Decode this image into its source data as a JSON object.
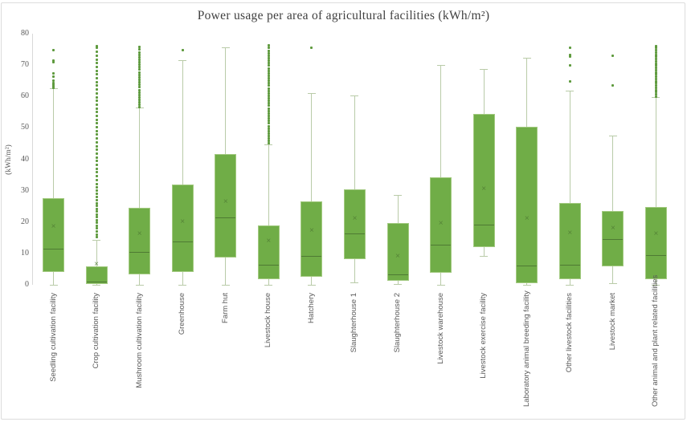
{
  "chart_data": {
    "type": "box",
    "title": "Power usage per area of agricultural facilities (kWh/m²)",
    "ylabel": "(kWh/m²)",
    "xlabel": "",
    "ylim": [
      0,
      80
    ],
    "yticks": [
      0,
      10,
      20,
      30,
      40,
      50,
      60,
      70,
      80
    ],
    "grid": false,
    "legend_position": "none",
    "boxes": [
      {
        "label": "Seedling cultivation facility",
        "low": 0,
        "q1": 4.2,
        "median": 11.5,
        "q3": 27.5,
        "high": 62.5,
        "mean": 18.3,
        "outliers": [
          62.8,
          63.2,
          63.7,
          64.2,
          65,
          66.3,
          67.4,
          71,
          71.5,
          74.8
        ]
      },
      {
        "label": "Crop cultivation facility",
        "low": 0,
        "q1": 0.2,
        "median": 0.9,
        "q3": 5.8,
        "high": 14.2,
        "mean": 6.5,
        "outliers": [
          15.2,
          16.1,
          17,
          17.9,
          18.8,
          19.7,
          20.6,
          21.5,
          22.4,
          23.3,
          24.2,
          25.1,
          26,
          27,
          28,
          29,
          30,
          31,
          32.2,
          33.4,
          34.6,
          35.8,
          37,
          38.2,
          39.4,
          40.6,
          41.8,
          43,
          44.2,
          45.4,
          46.6,
          47.8,
          49,
          50.2,
          51.4,
          52.6,
          53.8,
          55,
          56.2,
          57.4,
          58.6,
          59.8,
          61,
          62.2,
          63.4,
          64.6,
          65.8,
          67,
          68.2,
          69.4,
          70.6,
          71.8,
          73,
          74.2,
          75.4,
          76
        ]
      },
      {
        "label": "Mushroom cultivation facility",
        "low": 0,
        "q1": 3.2,
        "median": 10.3,
        "q3": 24.5,
        "high": 56.3,
        "mean": 16.2,
        "outliers": [
          56.5,
          57.3,
          58.1,
          58.9,
          59.7,
          60.5,
          61.3,
          62.1,
          62.9,
          63.7,
          64.5,
          65.3,
          66.1,
          66.9,
          67.7,
          68.5,
          69.3,
          70.1,
          70.9,
          71.7,
          72.5,
          73.3,
          74.1,
          74.9,
          75.7
        ]
      },
      {
        "label": "Greenhouse",
        "low": 0,
        "q1": 4.2,
        "median": 13.7,
        "q3": 32,
        "high": 71.5,
        "mean": 19.9,
        "outliers": [
          74.8
        ]
      },
      {
        "label": "Farm hut",
        "low": 0,
        "q1": 8.7,
        "median": 21.3,
        "q3": 41.7,
        "high": 75.5,
        "mean": 26.3,
        "outliers": []
      },
      {
        "label": "Livestock house",
        "low": 0,
        "q1": 1.7,
        "median": 6.3,
        "q3": 18.8,
        "high": 44.6,
        "mean": 13.7,
        "outliers": [
          45,
          45.8,
          46.6,
          47.4,
          48.2,
          49,
          49.8,
          50.6,
          51.4,
          52.2,
          53,
          53.8,
          54.6,
          55.4,
          56.2,
          57,
          57.8,
          58.6,
          59.4,
          60.2,
          61,
          61.8,
          62.6,
          63.4,
          64.2,
          65,
          65.8,
          66.6,
          67.4,
          68.2,
          69,
          69.8,
          70.6,
          71.4,
          72.2,
          73,
          73.8,
          74.6,
          75.4,
          76.2
        ]
      },
      {
        "label": "Hatchery",
        "low": 0,
        "q1": 2.6,
        "median": 9,
        "q3": 26.6,
        "high": 61,
        "mean": 17,
        "outliers": [
          75.5
        ]
      },
      {
        "label": "Slaughterhouse 1",
        "low": 0.7,
        "q1": 8.3,
        "median": 16.2,
        "q3": 30.4,
        "high": 60.3,
        "mean": 21,
        "outliers": []
      },
      {
        "label": "Slaughterhouse 2",
        "low": 0.2,
        "q1": 1.2,
        "median": 3.3,
        "q3": 19.6,
        "high": 28.6,
        "mean": 9,
        "outliers": []
      },
      {
        "label": "Livestock warehouse",
        "low": 0,
        "q1": 3.8,
        "median": 12.6,
        "q3": 34.2,
        "high": 69.8,
        "mean": 19.4,
        "outliers": []
      },
      {
        "label": "Livestock exercise facility",
        "low": 9,
        "q1": 12.1,
        "median": 19,
        "q3": 54.5,
        "high": 68.5,
        "mean": 30.4,
        "outliers": []
      },
      {
        "label": "Laboratory animal breeding facility",
        "low": 0,
        "q1": 0.4,
        "median": 6,
        "q3": 50.3,
        "high": 72.3,
        "mean": 21,
        "outliers": []
      },
      {
        "label": "Other livestock facilities",
        "low": 0,
        "q1": 1.7,
        "median": 6.3,
        "q3": 26,
        "high": 61.8,
        "mean": 16.3,
        "outliers": [
          64.9,
          69.8,
          72.8,
          73.2,
          75.6
        ]
      },
      {
        "label": "Livestock market",
        "low": 0.5,
        "q1": 6,
        "median": 14.5,
        "q3": 23.5,
        "high": 47.4,
        "mean": 17.9,
        "outliers": [
          63.5,
          73
        ]
      },
      {
        "label": "Other animal and plant related facilities",
        "low": 0,
        "q1": 1.7,
        "median": 9.4,
        "q3": 24.9,
        "high": 59.7,
        "mean": 16.1,
        "outliers": [
          60,
          60.7,
          61.4,
          62.1,
          62.8,
          63.5,
          64.2,
          64.9,
          65.6,
          66.3,
          67,
          67.7,
          68.4,
          69.1,
          69.8,
          70.5,
          71.2,
          71.9,
          72.6,
          73.3,
          74,
          74.7,
          75.4,
          76.1
        ]
      }
    ]
  },
  "colors": {
    "box_fill": "#70AD47",
    "box_border": "#A3CA81",
    "median_line": "#4E7A33",
    "mean_marker": "#4E7A33",
    "whisker": "#B9CBA8",
    "outlier": "#5E9A3D",
    "axis_line": "#D9D9D9",
    "axis_text": "#595959",
    "title_text": "#404040",
    "frame_border": "#DCDCDC"
  }
}
